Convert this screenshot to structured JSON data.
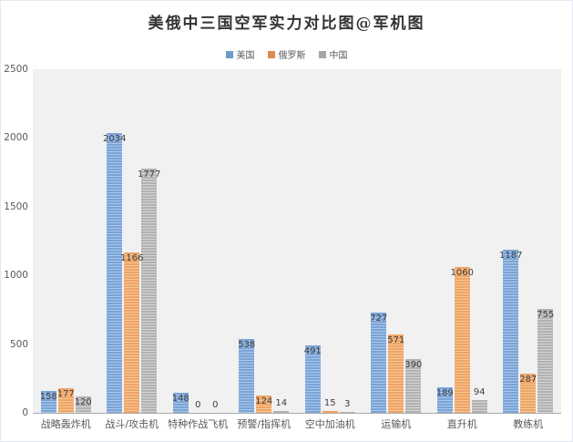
{
  "title": "美俄中三国空军实力对比图@军机图",
  "legend": {
    "items": [
      {
        "label": "美国",
        "color": "#6f9bcf"
      },
      {
        "label": "俄罗斯",
        "color": "#dd8a50"
      },
      {
        "label": "中国",
        "color": "#a6a6a6"
      }
    ]
  },
  "colors": {
    "plot_background": "#f1f1f1",
    "axis_line": "#ababab",
    "label_text": "#404040",
    "tick_text": "#595959",
    "title_text": "#333333"
  },
  "chart_data": {
    "type": "bar",
    "title": "美俄中三国空军实力对比图@军机图",
    "categories": [
      "战略轰炸机",
      "战斗/攻击机",
      "特种作战飞机",
      "预警/指挥机",
      "空中加油机",
      "运输机",
      "直升机",
      "教练机"
    ],
    "series": [
      {
        "name": "美国",
        "color_base": "#7aa4d7",
        "color_stripe": "#aac6e8",
        "values": [
          158,
          2034,
          148,
          538,
          491,
          727,
          189,
          1187
        ]
      },
      {
        "name": "俄罗斯",
        "color_base": "#eea466",
        "color_stripe": "#f6c795",
        "values": [
          177,
          1166,
          0,
          124,
          15,
          571,
          1060,
          287
        ]
      },
      {
        "name": "中国",
        "color_base": "#b2b2b2",
        "color_stripe": "#d3d3d3",
        "values": [
          120,
          1777,
          0,
          14,
          3,
          390,
          94,
          755
        ]
      }
    ],
    "xlabel": "",
    "ylabel": "",
    "ylim": [
      0,
      2500
    ],
    "yticks": [
      0,
      500,
      1000,
      1500,
      2000,
      2500
    ],
    "grid": false,
    "legend_position": "top",
    "data_labels": true
  }
}
